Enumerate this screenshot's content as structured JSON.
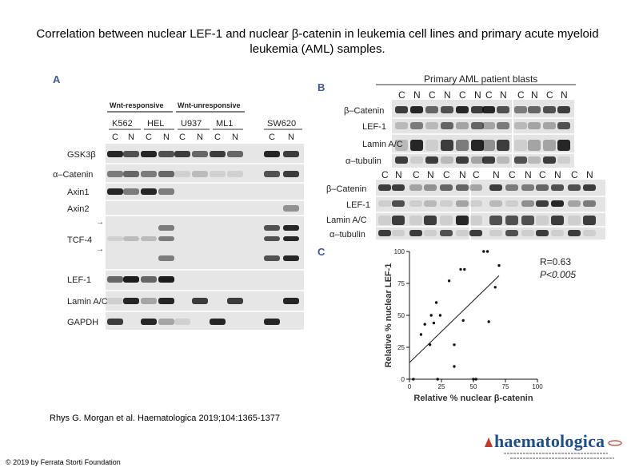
{
  "slide": {
    "title": "Correlation between nuclear LEF-1 and nuclear β-catenin in leukemia cell lines and primary acute myeloid leukemia (AML) samples.",
    "citation": "Rhys G. Morgan et al. Haematologica 2019;104:1365-1377",
    "copyright": "© 2019 by Ferrata Storti Foundation",
    "logo_text": "haematologica"
  },
  "panel_a": {
    "letter": "A",
    "group_labels": [
      "Wnt-responsive",
      "Wnt-unresponsive"
    ],
    "cell_lines": [
      "K562",
      "HEL",
      "U937",
      "ML1",
      "SW620"
    ],
    "lane_labels": [
      "C",
      "N",
      "C",
      "N",
      "C",
      "N",
      "C",
      "N",
      "C",
      "N"
    ],
    "row_labels": [
      "GSK3β",
      "α–Catenin",
      "Axin1",
      "Axin2",
      "TCF-4",
      "LEF-1",
      "Lamin A/C",
      "GAPDH"
    ]
  },
  "panel_b": {
    "letter": "B",
    "header": "Primary AML patient blasts",
    "lanes_top": [
      "C",
      "N",
      "C",
      "N",
      "C",
      "N",
      "C",
      "N",
      "C",
      "N",
      "C",
      "N"
    ],
    "rows_top": [
      "β–Catenin",
      "LEF-1",
      "Lamin A/C",
      "α–tubulin"
    ],
    "lanes_bottom": [
      "C",
      "N",
      "C",
      "N",
      "C",
      "N",
      "C",
      "N",
      "C",
      "N",
      "C",
      "N",
      "C",
      "N"
    ],
    "rows_bottom": [
      "β–Catenin",
      "LEF-1",
      "Lamin A/C",
      "α–tubulin"
    ]
  },
  "panel_c": {
    "letter": "C",
    "stat_r": "R=0.63",
    "stat_p": "P<0.005"
  },
  "chart_data": {
    "type": "scatter",
    "xlabel": "Relative % nuclear β-catenin",
    "ylabel": "Relative % nuclear LEF-1",
    "xlim": [
      0,
      100
    ],
    "ylim": [
      0,
      100
    ],
    "xticks": [
      0,
      25,
      50,
      75,
      100
    ],
    "yticks": [
      0,
      25,
      50,
      75,
      100
    ],
    "points": [
      {
        "x": 9,
        "y": 35
      },
      {
        "x": 12,
        "y": 43
      },
      {
        "x": 16,
        "y": 27
      },
      {
        "x": 17,
        "y": 50
      },
      {
        "x": 19,
        "y": 44
      },
      {
        "x": 21,
        "y": 60
      },
      {
        "x": 24,
        "y": 50
      },
      {
        "x": 31,
        "y": 77
      },
      {
        "x": 35,
        "y": 27
      },
      {
        "x": 35,
        "y": 10
      },
      {
        "x": 40,
        "y": 86
      },
      {
        "x": 43,
        "y": 86
      },
      {
        "x": 42,
        "y": 46
      },
      {
        "x": 50,
        "y": 0
      },
      {
        "x": 52,
        "y": 0
      },
      {
        "x": 58,
        "y": 100
      },
      {
        "x": 61,
        "y": 100
      },
      {
        "x": 62,
        "y": 45
      },
      {
        "x": 67,
        "y": 72
      },
      {
        "x": 70,
        "y": 89
      },
      {
        "x": 3,
        "y": 0
      },
      {
        "x": 22,
        "y": 0
      }
    ],
    "trendline": {
      "x": [
        0,
        70
      ],
      "y": [
        13,
        81
      ]
    }
  }
}
